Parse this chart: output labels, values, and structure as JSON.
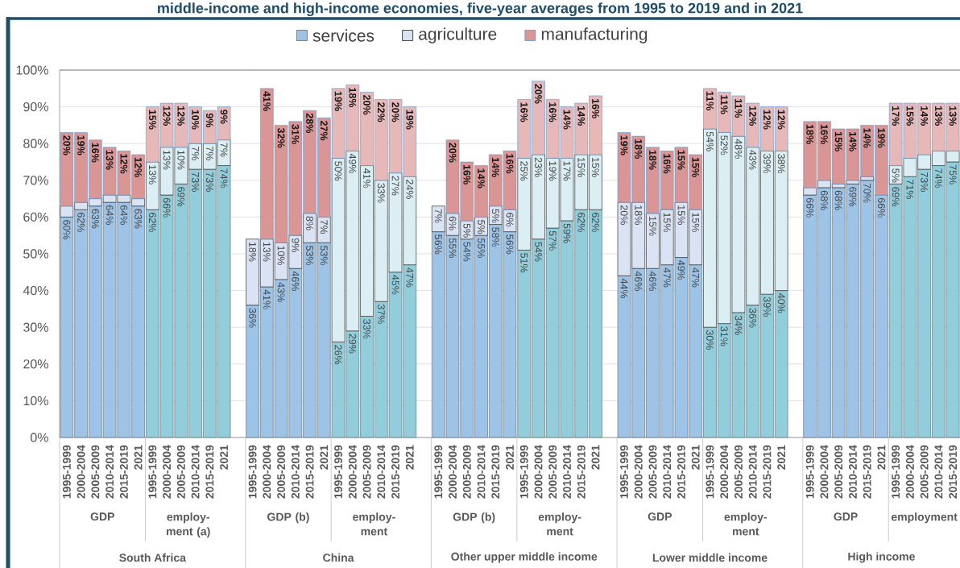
{
  "chart_data": [
    {
      "type": "bar",
      "stacked": true,
      "title": "middle-income and high-income economies, five-year averages from 1995 to 2019 and in 2021",
      "legend": "top",
      "grid": "y",
      "xlabel": "South Africa",
      "annotations": [
        "GDP",
        "employ-ment (a)"
      ],
      "categories": [
        "1995-1999",
        "2000-2004",
        "2005-2009",
        "2010-2014",
        "2015-2019",
        "2021",
        "1995-1999",
        "2000-2004",
        "2005-2009",
        "2010-2014",
        "2015-2019",
        "2021"
      ],
      "series": [
        {
          "name": "services",
          "color": "#9dc3e6",
          "colors": [
            "#9dc3e6",
            "#9dc3e6",
            "#9dc3e6",
            "#9dc3e6",
            "#9dc3e6",
            "#9dc3e6",
            "#92cddc",
            "#92cddc",
            "#92cddc",
            "#92cddc",
            "#92cddc",
            "#92cddc"
          ],
          "values": [
            60,
            62,
            63,
            64,
            64,
            63,
            62,
            66,
            69,
            73,
            73,
            74
          ],
          "value_labels": [
            "60%",
            "62%",
            "63%",
            "64%",
            "64%",
            "63%",
            "62%",
            "66%",
            "69%",
            "73%",
            "73%",
            "74%"
          ]
        },
        {
          "name": "agriculture",
          "color": "#dae3f3",
          "colors": [
            "#dae3f3",
            "#dae3f3",
            "#dae3f3",
            "#dae3f3",
            "#dae3f3",
            "#dae3f3",
            "#daeef3",
            "#daeef3",
            "#daeef3",
            "#daeef3",
            "#daeef3",
            "#daeef3"
          ],
          "values": [
            3,
            2,
            2,
            2,
            2,
            2,
            13,
            13,
            10,
            7,
            7,
            7
          ],
          "value_labels": [
            null,
            null,
            null,
            null,
            null,
            null,
            "13%",
            "13%",
            "10%",
            "7%",
            "7%",
            "7%"
          ]
        },
        {
          "name": "manufacturing",
          "color": "#da9694",
          "colors": [
            "#da9694",
            "#da9694",
            "#da9694",
            "#da9694",
            "#da9694",
            "#da9694",
            "#e6b8b7",
            "#e6b8b7",
            "#e6b8b7",
            "#e6b8b7",
            "#e6b8b7",
            "#e6b8b7"
          ],
          "values": [
            20,
            19,
            16,
            13,
            12,
            12,
            15,
            12,
            12,
            10,
            9,
            9
          ],
          "value_labels": [
            "20%",
            "19%",
            "16%",
            "13%",
            "12%",
            "12%",
            "15%",
            "12%",
            "12%",
            "10%",
            "9%",
            "9%"
          ]
        }
      ],
      "ylim": [
        0,
        100
      ],
      "yticks": [
        {
          "value": 0,
          "label": "0%"
        },
        {
          "value": 10,
          "label": "10%"
        },
        {
          "value": 20,
          "label": "20%"
        },
        {
          "value": 30,
          "label": "30%"
        },
        {
          "value": 40,
          "label": "40%"
        },
        {
          "value": 50,
          "label": "50%"
        },
        {
          "value": 60,
          "label": "60%"
        },
        {
          "value": 70,
          "label": "70%"
        },
        {
          "value": 80,
          "label": "80%"
        },
        {
          "value": 90,
          "label": "90%"
        },
        {
          "value": 100,
          "label": "100%"
        }
      ]
    },
    {
      "type": "bar",
      "stacked": true,
      "grid": "y",
      "tick_labels": "x",
      "xlabel": "China",
      "annotations": [
        "GDP (b)",
        "employ-ment"
      ],
      "categories": [
        "1995-1999",
        "2000-2004",
        "2005-2009",
        "2010-2014",
        "2015-2019",
        "2021",
        "1995-1999",
        "2000-2004",
        "2005-2009",
        "2010-2014",
        "2015-2019",
        "2021"
      ],
      "series": [
        {
          "colors": [
            "#9dc3e6",
            "#9dc3e6",
            "#9dc3e6",
            "#9dc3e6",
            "#9dc3e6",
            "#9dc3e6",
            "#92cddc",
            "#92cddc",
            "#92cddc",
            "#92cddc",
            "#92cddc",
            "#92cddc"
          ],
          "values": [
            36,
            41,
            43,
            46,
            53,
            53,
            26,
            29,
            33,
            37,
            45,
            47
          ],
          "value_labels": [
            "36%",
            "41%",
            "43%",
            "46%",
            "53%",
            "53%",
            "26%",
            "29%",
            "33%",
            "37%",
            "45%",
            "47%"
          ]
        },
        {
          "colors": [
            "#dae3f3",
            "#dae3f3",
            "#dae3f3",
            "#dae3f3",
            "#dae3f3",
            "#dae3f3",
            "#daeef3",
            "#daeef3",
            "#daeef3",
            "#daeef3",
            "#daeef3",
            "#daeef3"
          ],
          "values": [
            18,
            13,
            10,
            9,
            8,
            7,
            50,
            49,
            41,
            33,
            27,
            24
          ],
          "value_labels": [
            "18%",
            "13%",
            "10%",
            "9%",
            "8%",
            "7%",
            "50%",
            "49%",
            "41%",
            "33%",
            "27%",
            "24%"
          ]
        },
        {
          "colors": [
            "#da9694",
            "#da9694",
            "#da9694",
            "#da9694",
            "#da9694",
            "#da9694",
            "#e6b8b7",
            "#e6b8b7",
            "#e6b8b7",
            "#e6b8b7",
            "#e6b8b7",
            "#e6b8b7"
          ],
          "values": [
            null,
            41,
            32,
            31,
            28,
            27,
            19,
            18,
            20,
            22,
            20,
            19
          ],
          "value_labels": [
            null,
            "41%",
            "32%",
            "31%",
            "28%",
            "27%",
            "19%",
            "18%",
            "20%",
            "22%",
            "20%",
            "19%"
          ]
        }
      ],
      "ylim": [
        0,
        100
      ],
      "yticks": [
        0,
        10,
        20,
        30,
        40,
        50,
        60,
        70,
        80,
        90,
        100
      ]
    },
    {
      "type": "bar",
      "stacked": true,
      "grid": "y",
      "tick_labels": "x",
      "xlabel": "Other upper middle income",
      "annotations": [
        "GDP (b)",
        "employ-ment"
      ],
      "categories": [
        "1995-1999",
        "2000-2004",
        "2005-2009",
        "2010-2014",
        "2015-2019",
        "2021",
        "1995-1999",
        "2000-2004",
        "2005-2009",
        "2010-2014",
        "2015-2019",
        "2021"
      ],
      "series": [
        {
          "colors": [
            "#9dc3e6",
            "#9dc3e6",
            "#9dc3e6",
            "#9dc3e6",
            "#9dc3e6",
            "#9dc3e6",
            "#92cddc",
            "#92cddc",
            "#92cddc",
            "#92cddc",
            "#92cddc",
            "#92cddc"
          ],
          "values": [
            56,
            55,
            54,
            55,
            58,
            56,
            51,
            54,
            57,
            59,
            62,
            62
          ],
          "value_labels": [
            "56%",
            "55%",
            "54%",
            "55%",
            "58%",
            "56%",
            "51%",
            "54%",
            "57%",
            "59%",
            "62%",
            "62%"
          ]
        },
        {
          "colors": [
            "#dae3f3",
            "#dae3f3",
            "#dae3f3",
            "#dae3f3",
            "#dae3f3",
            "#dae3f3",
            "#daeef3",
            "#daeef3",
            "#daeef3",
            "#daeef3",
            "#daeef3",
            "#daeef3"
          ],
          "values": [
            7,
            6,
            5,
            5,
            5,
            6,
            25,
            23,
            19,
            17,
            15,
            15
          ],
          "value_labels": [
            "7%",
            "6%",
            "5%",
            "5%",
            "5%",
            "6%",
            "25%",
            "23%",
            "19%",
            "17%",
            "15%",
            "15%"
          ]
        },
        {
          "colors": [
            "#da9694",
            "#da9694",
            "#da9694",
            "#da9694",
            "#da9694",
            "#da9694",
            "#e6b8b7",
            "#e6b8b7",
            "#e6b8b7",
            "#e6b8b7",
            "#e6b8b7",
            "#e6b8b7"
          ],
          "values": [
            null,
            20,
            16,
            14,
            14,
            16,
            16,
            20,
            16,
            14,
            14,
            16
          ],
          "value_labels": [
            null,
            "20%",
            "16%",
            "14%",
            "14%",
            "16%",
            "16%",
            "20%",
            "16%",
            "14%",
            "14%",
            "16%"
          ]
        }
      ],
      "ylim": [
        0,
        100
      ],
      "yticks": [
        0,
        10,
        20,
        30,
        40,
        50,
        60,
        70,
        80,
        90,
        100
      ]
    },
    {
      "type": "bar",
      "stacked": true,
      "grid": "y",
      "tick_labels": "x",
      "xlabel": "Lower middle income",
      "annotations": [
        "GDP",
        "employ-ment"
      ],
      "categories": [
        "1995-1999",
        "2000-2004",
        "2005-2009",
        "2010-2014",
        "2015-2019",
        "2021",
        "1995-1999",
        "2000-2004",
        "2005-2009",
        "2010-2014",
        "2015-2019",
        "2021"
      ],
      "series": [
        {
          "colors": [
            "#9dc3e6",
            "#9dc3e6",
            "#9dc3e6",
            "#9dc3e6",
            "#9dc3e6",
            "#9dc3e6",
            "#92cddc",
            "#92cddc",
            "#92cddc",
            "#92cddc",
            "#92cddc",
            "#92cddc"
          ],
          "values": [
            44,
            46,
            46,
            47,
            49,
            47,
            30,
            31,
            34,
            36,
            39,
            40
          ],
          "value_labels": [
            "44%",
            "46%",
            "46%",
            "47%",
            "49%",
            "47%",
            "30%",
            "31%",
            "34%",
            "36%",
            "39%",
            "40%"
          ]
        },
        {
          "colors": [
            "#dae3f3",
            "#dae3f3",
            "#dae3f3",
            "#dae3f3",
            "#dae3f3",
            "#dae3f3",
            "#daeef3",
            "#daeef3",
            "#daeef3",
            "#daeef3",
            "#daeef3",
            "#daeef3"
          ],
          "values": [
            20,
            18,
            15,
            15,
            15,
            15,
            54,
            52,
            48,
            43,
            39,
            38
          ],
          "value_labels": [
            "20%",
            "18%",
            "15%",
            "15%",
            "15%",
            "15%",
            "54%",
            "52%",
            "48%",
            "43%",
            "39%",
            "38%"
          ]
        },
        {
          "colors": [
            "#da9694",
            "#da9694",
            "#da9694",
            "#da9694",
            "#da9694",
            "#da9694",
            "#e6b8b7",
            "#e6b8b7",
            "#e6b8b7",
            "#e6b8b7",
            "#e6b8b7",
            "#e6b8b7"
          ],
          "values": [
            19,
            18,
            18,
            16,
            15,
            15,
            11,
            11,
            11,
            12,
            12,
            12
          ],
          "value_labels": [
            "19%",
            "18%",
            "18%",
            "16%",
            "15%",
            "15%",
            "11%",
            "11%",
            "11%",
            "12%",
            "12%",
            "12%"
          ]
        }
      ],
      "ylim": [
        0,
        100
      ],
      "yticks": [
        0,
        10,
        20,
        30,
        40,
        50,
        60,
        70,
        80,
        90,
        100
      ]
    },
    {
      "type": "bar",
      "stacked": true,
      "grid": "y",
      "tick_labels": "x",
      "xlabel": "High income",
      "annotations": [
        "GDP",
        "employment"
      ],
      "categories": [
        "1995-1999",
        "2000-2004",
        "2005-2009",
        "2010-2014",
        "2015-2019",
        "2021",
        "1995-1999",
        "2000-2004",
        "2005-2009",
        "2010-2014",
        "2015-2019"
      ],
      "series": [
        {
          "colors": [
            "#9dc3e6",
            "#9dc3e6",
            "#9dc3e6",
            "#9dc3e6",
            "#9dc3e6",
            "#9dc3e6",
            "#92cddc",
            "#92cddc",
            "#92cddc",
            "#92cddc",
            "#92cddc"
          ],
          "values": [
            66,
            68,
            68,
            69,
            70,
            66,
            69,
            71,
            73,
            74,
            75
          ],
          "value_labels": [
            "66%",
            "68%",
            "68%",
            "69%",
            "70%",
            "66%",
            "69%",
            "71%",
            "73%",
            "74%",
            "75%"
          ]
        },
        {
          "colors": [
            "#dae3f3",
            "#dae3f3",
            "#dae3f3",
            "#dae3f3",
            "#dae3f3",
            "#dae3f3",
            "#daeef3",
            "#daeef3",
            "#daeef3",
            "#daeef3",
            "#daeef3"
          ],
          "values": [
            2,
            2,
            1,
            1,
            1,
            null,
            5,
            5,
            4,
            4,
            3
          ],
          "value_labels": [
            null,
            null,
            null,
            null,
            null,
            null,
            "5%",
            null,
            null,
            null,
            null
          ]
        },
        {
          "colors": [
            "#da9694",
            "#da9694",
            "#da9694",
            "#da9694",
            "#da9694",
            "#da9694",
            "#e6b8b7",
            "#e6b8b7",
            "#e6b8b7",
            "#e6b8b7",
            "#e6b8b7"
          ],
          "values": [
            18,
            16,
            15,
            14,
            14,
            19,
            17,
            15,
            14,
            13,
            13
          ],
          "value_labels": [
            "18%",
            "16%",
            "15%",
            "14%",
            "14%",
            "19%",
            "17%",
            "15%",
            "14%",
            "13%",
            "13%"
          ]
        }
      ],
      "ylim": [
        0,
        100
      ],
      "yticks": [
        0,
        10,
        20,
        30,
        40,
        50,
        60,
        70,
        80,
        90,
        100
      ]
    }
  ]
}
